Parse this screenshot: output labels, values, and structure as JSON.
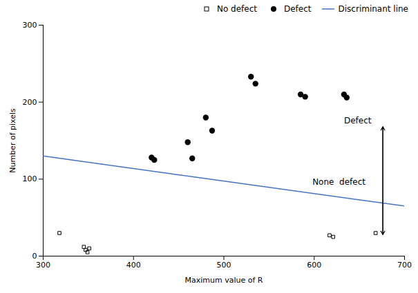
{
  "chart_data": {
    "type": "scatter",
    "xlabel": "Maximum value of R",
    "ylabel": "Number of pixels",
    "xlim": [
      300,
      700
    ],
    "ylim": [
      0,
      300
    ],
    "xticks": [
      300,
      400,
      500,
      600,
      700
    ],
    "yticks": [
      0,
      100,
      200,
      300
    ],
    "grid": false,
    "legend": "upper right",
    "series": [
      {
        "name": "No defect",
        "type": "scatter",
        "marker": "square",
        "color": "black",
        "x": [
          318,
          345,
          347,
          349,
          351,
          617,
          621,
          668
        ],
        "values": [
          30,
          12,
          8,
          5,
          10,
          27,
          25,
          30
        ]
      },
      {
        "name": "Defect",
        "type": "scatter",
        "marker": "circle",
        "color": "black",
        "x": [
          420,
          423,
          460,
          465,
          480,
          487,
          530,
          535,
          585,
          590,
          633,
          636
        ],
        "values": [
          128,
          125,
          148,
          127,
          180,
          163,
          233,
          224,
          210,
          207,
          210,
          206
        ]
      },
      {
        "name": "Discriminant line",
        "type": "line",
        "color": "#4472C4",
        "x": [
          300,
          700
        ],
        "values": [
          130,
          65
        ]
      }
    ],
    "annotations": [
      {
        "text": "Defect",
        "x": 633,
        "y": 172
      },
      {
        "text": "None  defect",
        "x": 598,
        "y": 100
      }
    ],
    "arrows": [
      {
        "x": 676,
        "y_start": 168,
        "y_end": 28
      }
    ]
  }
}
